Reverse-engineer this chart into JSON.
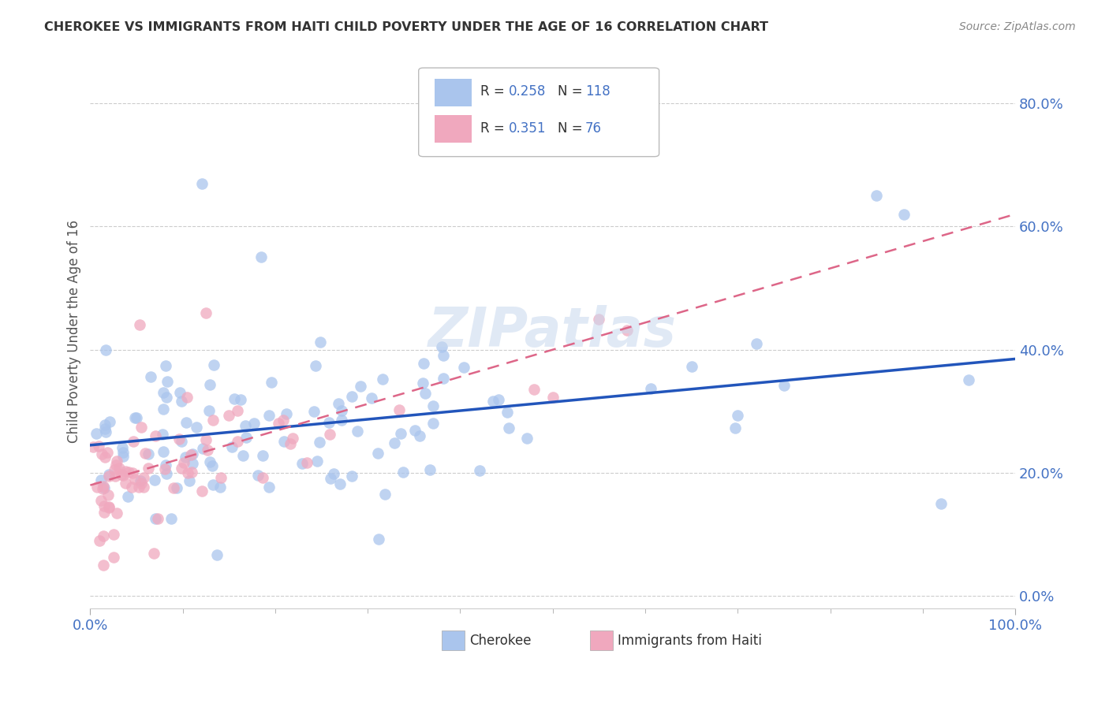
{
  "title": "CHEROKEE VS IMMIGRANTS FROM HAITI CHILD POVERTY UNDER THE AGE OF 16 CORRELATION CHART",
  "source": "Source: ZipAtlas.com",
  "ylabel": "Child Poverty Under the Age of 16",
  "xlim": [
    0,
    1
  ],
  "ylim": [
    -0.02,
    0.88
  ],
  "yticks": [
    0.0,
    0.2,
    0.4,
    0.6,
    0.8
  ],
  "ytick_labels": [
    "0.0%",
    "20.0%",
    "40.0%",
    "60.0%",
    "80.0%"
  ],
  "cherokee_R": 0.258,
  "cherokee_N": 118,
  "haiti_R": 0.351,
  "haiti_N": 76,
  "cherokee_color": "#aac5ed",
  "haiti_color": "#f0a8be",
  "cherokee_line_color": "#2255bb",
  "haiti_line_color": "#dd6688",
  "background_color": "#ffffff",
  "grid_color": "#cccccc",
  "watermark": "ZIPatlas",
  "title_color": "#333333",
  "source_color": "#888888",
  "tick_color": "#4472c4",
  "cherokee_intercept": 0.245,
  "cherokee_slope": 0.14,
  "haiti_intercept": 0.18,
  "haiti_slope": 0.44
}
